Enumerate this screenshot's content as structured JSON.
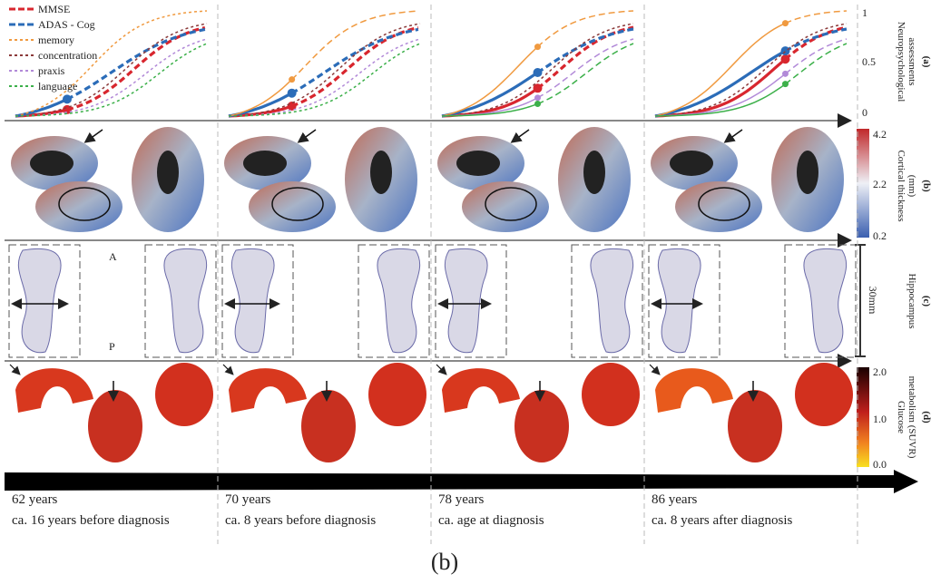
{
  "legend": [
    "MMSE",
    "ADAS - Cog",
    "memory",
    "concentration",
    "praxis",
    "language"
  ],
  "panels": [
    {
      "letter": "(a)",
      "label_lines": [
        "Neuropsychological",
        "assessments"
      ],
      "ticks": [
        "1",
        "0.5",
        "0"
      ]
    },
    {
      "letter": "(b)",
      "label_lines": [
        "Cortical thickness",
        "(mm)"
      ],
      "ticks": [
        "4.2",
        "2.2",
        "0.2"
      ]
    },
    {
      "letter": "(c)",
      "label_lines": [
        "Hippocampus"
      ],
      "scale": "30mm",
      "orientation": [
        "A",
        "P"
      ]
    },
    {
      "letter": "(d)",
      "label_lines": [
        "Glucose",
        "metabolism (SUVR)"
      ],
      "ticks": [
        "2.0",
        "1.0",
        "0.0"
      ]
    }
  ],
  "timepoints": [
    {
      "age": "62 years",
      "note": "ca. 16 years before diagnosis"
    },
    {
      "age": "70 years",
      "note": "ca. 8 years before diagnosis"
    },
    {
      "age": "78 years",
      "note": "ca. age at diagnosis"
    },
    {
      "age": "86 years",
      "note": "ca. 8 years after diagnosis"
    }
  ],
  "caption": "(b)"
}
